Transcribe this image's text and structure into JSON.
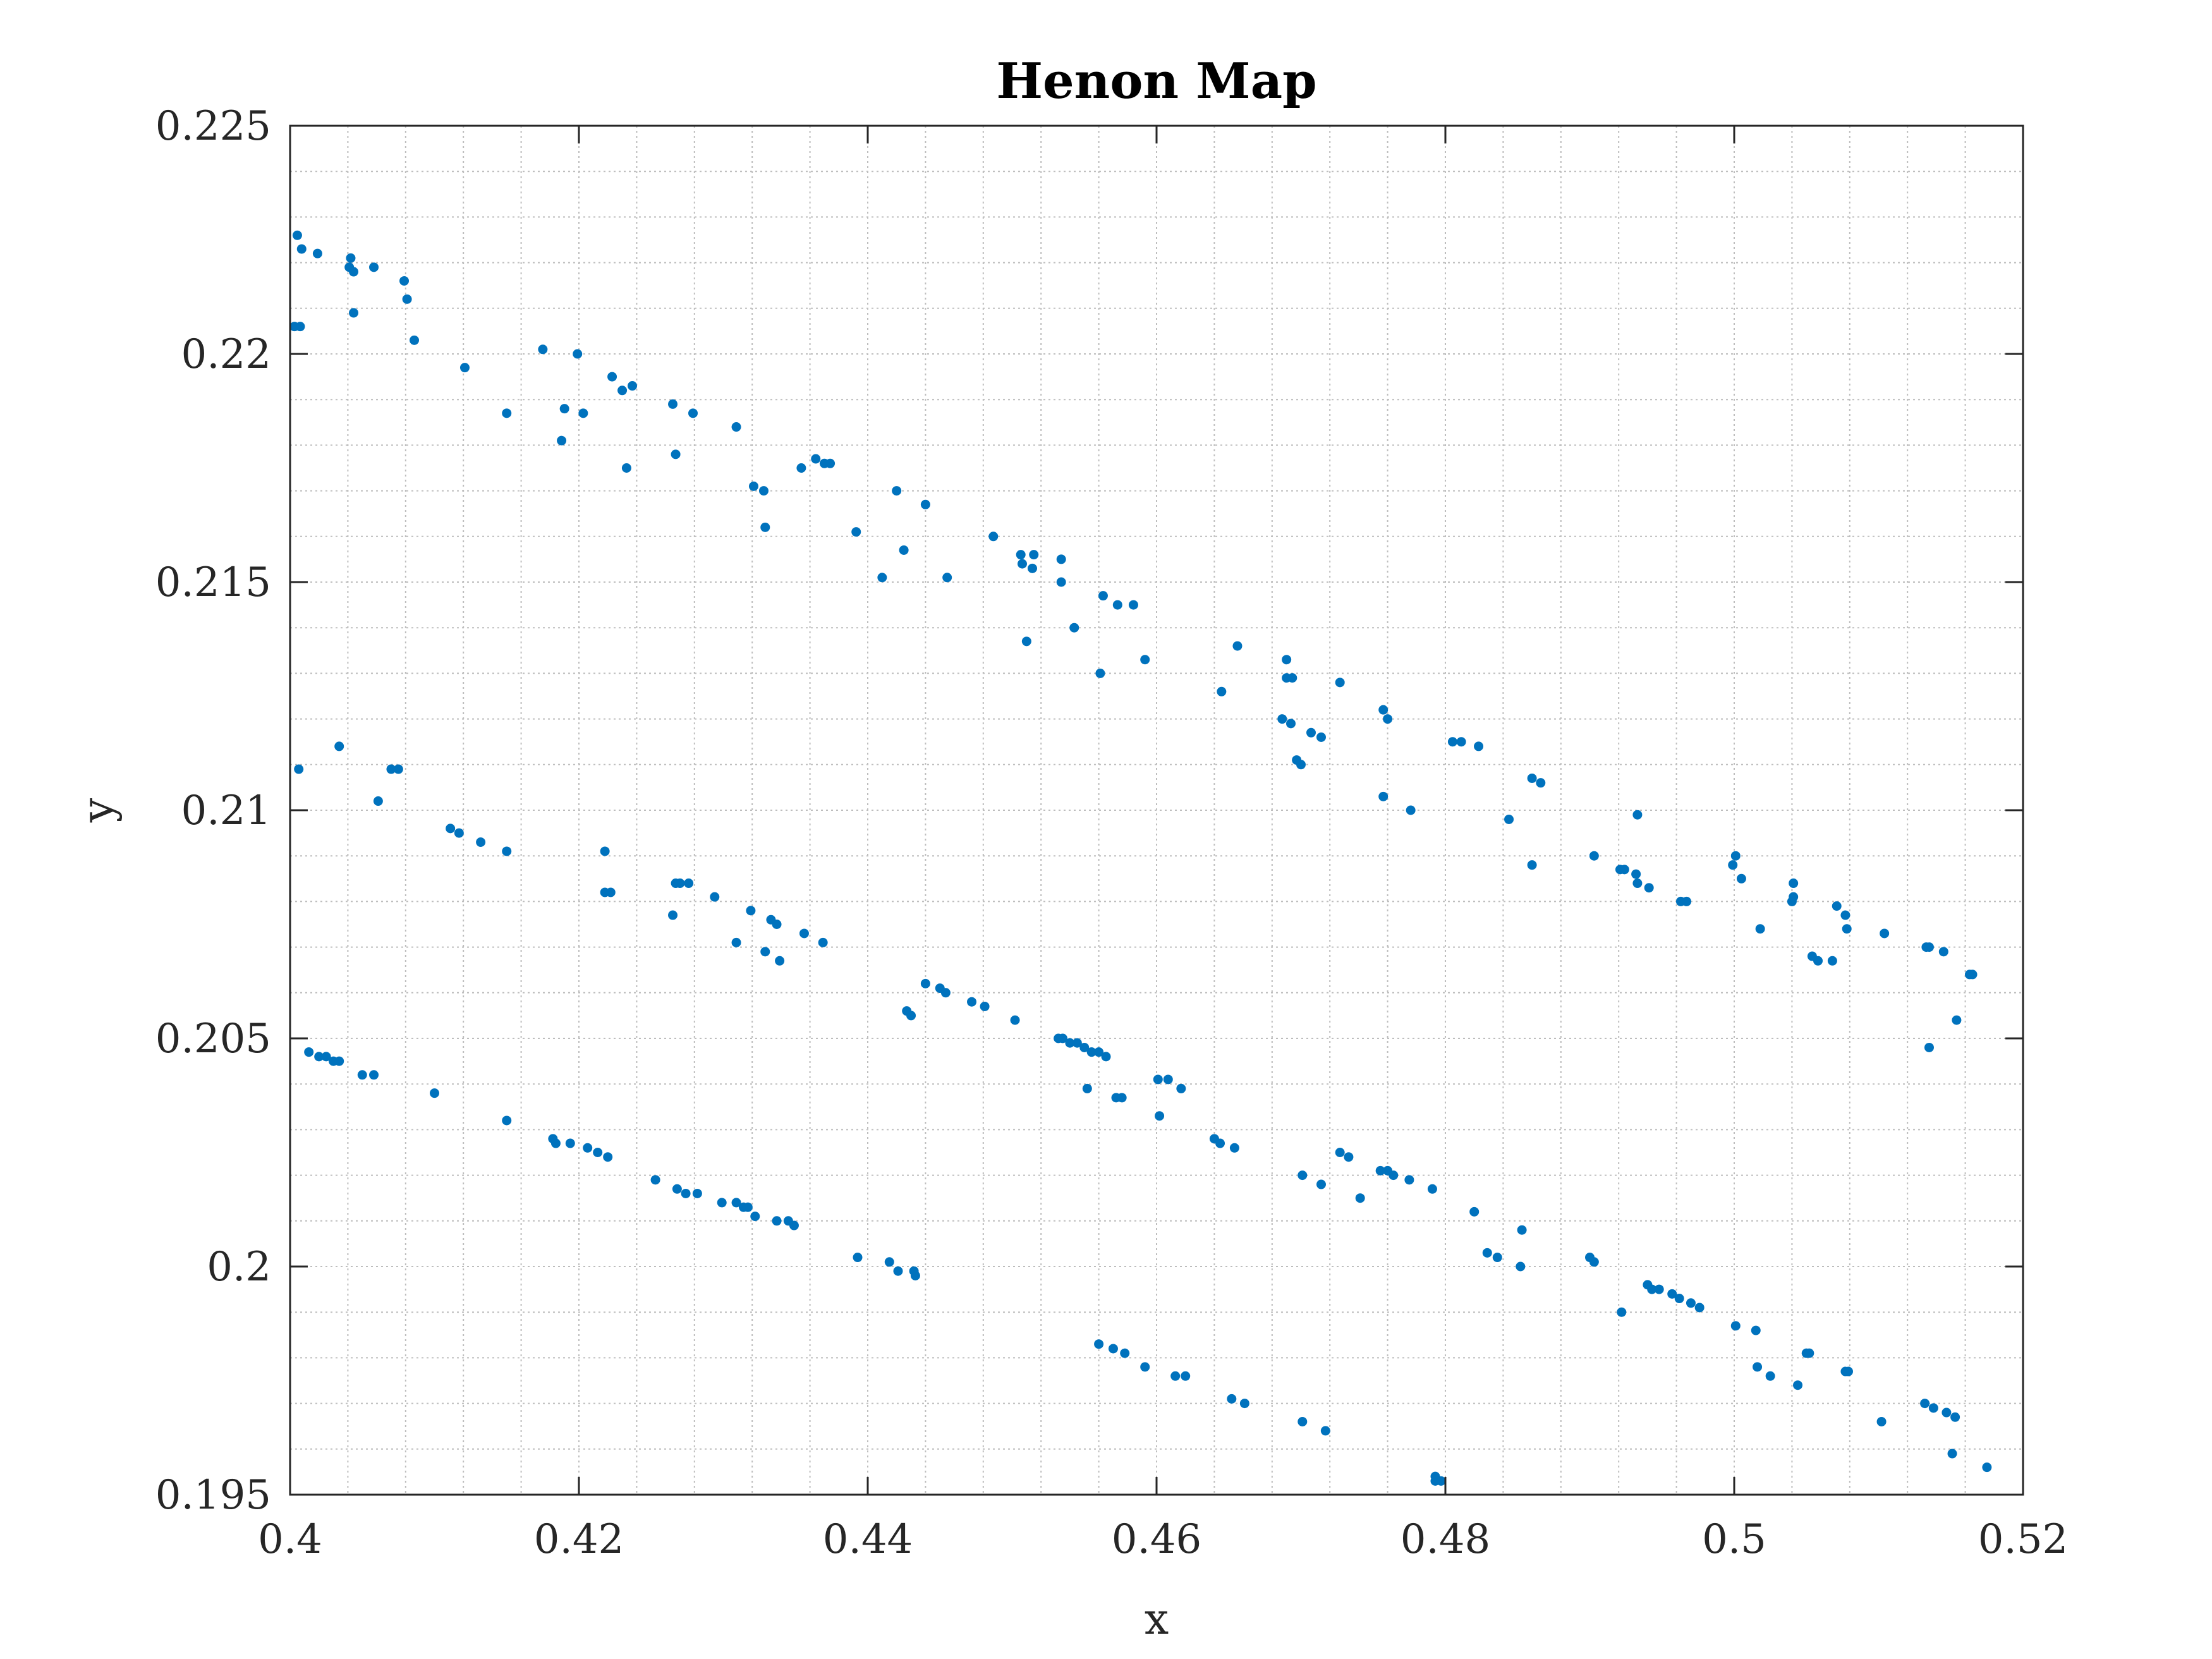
{
  "chart_data": {
    "type": "scatter",
    "title": "Henon Map",
    "xlabel": "x",
    "ylabel": "y",
    "xlim": [
      0.4,
      0.52
    ],
    "ylim": [
      0.195,
      0.225
    ],
    "grid": "on (major and minor)",
    "marker_color": "#0072BD",
    "x_ticks": [
      "0.4",
      "0.42",
      "0.44",
      "0.46",
      "0.48",
      "0.5",
      "0.52"
    ],
    "y_ticks": [
      "0.195",
      "0.2",
      "0.205",
      "0.21",
      "0.215",
      "0.22",
      "0.225"
    ],
    "points": [
      [
        0.4005,
        0.2226
      ],
      [
        0.4008,
        0.2223
      ],
      [
        0.4019,
        0.2222
      ],
      [
        0.4041,
        0.2219
      ],
      [
        0.4042,
        0.2221
      ],
      [
        0.4044,
        0.2218
      ],
      [
        0.4058,
        0.2219
      ],
      [
        0.4079,
        0.2216
      ],
      [
        0.4081,
        0.2212
      ],
      [
        0.4044,
        0.2209
      ],
      [
        0.4003,
        0.2206
      ],
      [
        0.4007,
        0.2206
      ],
      [
        0.4086,
        0.2203
      ],
      [
        0.4175,
        0.2201
      ],
      [
        0.4199,
        0.22
      ],
      [
        0.4121,
        0.2197
      ],
      [
        0.4223,
        0.2195
      ],
      [
        0.423,
        0.2192
      ],
      [
        0.4237,
        0.2193
      ],
      [
        0.4265,
        0.2189
      ],
      [
        0.4279,
        0.2187
      ],
      [
        0.415,
        0.2187
      ],
      [
        0.419,
        0.2188
      ],
      [
        0.4203,
        0.2187
      ],
      [
        0.4309,
        0.2184
      ],
      [
        0.4188,
        0.2181
      ],
      [
        0.4267,
        0.2178
      ],
      [
        0.4233,
        0.2175
      ],
      [
        0.4354,
        0.2175
      ],
      [
        0.4364,
        0.2177
      ],
      [
        0.437,
        0.2176
      ],
      [
        0.4374,
        0.2176
      ],
      [
        0.4321,
        0.2171
      ],
      [
        0.4328,
        0.217
      ],
      [
        0.442,
        0.217
      ],
      [
        0.444,
        0.2167
      ],
      [
        0.4329,
        0.2162
      ],
      [
        0.4392,
        0.2161
      ],
      [
        0.4487,
        0.216
      ],
      [
        0.4425,
        0.2157
      ],
      [
        0.4506,
        0.2156
      ],
      [
        0.4515,
        0.2156
      ],
      [
        0.4534,
        0.2155
      ],
      [
        0.4507,
        0.2154
      ],
      [
        0.4514,
        0.2153
      ],
      [
        0.441,
        0.2151
      ],
      [
        0.4455,
        0.2151
      ],
      [
        0.4534,
        0.215
      ],
      [
        0.4563,
        0.2147
      ],
      [
        0.4573,
        0.2145
      ],
      [
        0.4584,
        0.2145
      ],
      [
        0.4543,
        0.214
      ],
      [
        0.451,
        0.2137
      ],
      [
        0.4656,
        0.2136
      ],
      [
        0.4592,
        0.2133
      ],
      [
        0.469,
        0.2133
      ],
      [
        0.4561,
        0.213
      ],
      [
        0.469,
        0.2129
      ],
      [
        0.4694,
        0.2129
      ],
      [
        0.4727,
        0.2128
      ],
      [
        0.4645,
        0.2126
      ],
      [
        0.4757,
        0.2122
      ],
      [
        0.476,
        0.212
      ],
      [
        0.4687,
        0.212
      ],
      [
        0.4693,
        0.2119
      ],
      [
        0.4707,
        0.2117
      ],
      [
        0.4714,
        0.2116
      ],
      [
        0.4805,
        0.2115
      ],
      [
        0.4811,
        0.2115
      ],
      [
        0.4823,
        0.2114
      ],
      [
        0.4697,
        0.2111
      ],
      [
        0.47,
        0.211
      ],
      [
        0.486,
        0.2107
      ],
      [
        0.4866,
        0.2106
      ],
      [
        0.4757,
        0.2103
      ],
      [
        0.4776,
        0.21
      ],
      [
        0.4844,
        0.2098
      ],
      [
        0.4933,
        0.2099
      ],
      [
        0.4903,
        0.209
      ],
      [
        0.5001,
        0.209
      ],
      [
        0.4999,
        0.2088
      ],
      [
        0.4921,
        0.2087
      ],
      [
        0.4924,
        0.2087
      ],
      [
        0.486,
        0.2088
      ],
      [
        0.4932,
        0.2086
      ],
      [
        0.4933,
        0.2084
      ],
      [
        0.4941,
        0.2083
      ],
      [
        0.5005,
        0.2085
      ],
      [
        0.5041,
        0.2084
      ],
      [
        0.5041,
        0.2081
      ],
      [
        0.504,
        0.208
      ],
      [
        0.4967,
        0.208
      ],
      [
        0.4963,
        0.208
      ],
      [
        0.5071,
        0.2079
      ],
      [
        0.5077,
        0.2077
      ],
      [
        0.5018,
        0.2074
      ],
      [
        0.5078,
        0.2074
      ],
      [
        0.5104,
        0.2073
      ],
      [
        0.5133,
        0.207
      ],
      [
        0.5135,
        0.207
      ],
      [
        0.5145,
        0.2069
      ],
      [
        0.5054,
        0.2068
      ],
      [
        0.5058,
        0.2067
      ],
      [
        0.5068,
        0.2067
      ],
      [
        0.5163,
        0.2064
      ],
      [
        0.5165,
        0.2064
      ],
      [
        0.5154,
        0.2054
      ],
      [
        0.5135,
        0.2048
      ],
      [
        0.4006,
        0.2109
      ],
      [
        0.4034,
        0.2114
      ],
      [
        0.407,
        0.2109
      ],
      [
        0.4075,
        0.2109
      ],
      [
        0.4061,
        0.2102
      ],
      [
        0.4111,
        0.2096
      ],
      [
        0.4117,
        0.2095
      ],
      [
        0.4132,
        0.2093
      ],
      [
        0.415,
        0.2091
      ],
      [
        0.4218,
        0.2091
      ],
      [
        0.4218,
        0.2082
      ],
      [
        0.4222,
        0.2082
      ],
      [
        0.4267,
        0.2084
      ],
      [
        0.427,
        0.2084
      ],
      [
        0.4276,
        0.2084
      ],
      [
        0.4294,
        0.2081
      ],
      [
        0.4319,
        0.2078
      ],
      [
        0.4333,
        0.2076
      ],
      [
        0.4337,
        0.2075
      ],
      [
        0.4265,
        0.2077
      ],
      [
        0.4309,
        0.2071
      ],
      [
        0.4356,
        0.2073
      ],
      [
        0.4369,
        0.2071
      ],
      [
        0.4329,
        0.2069
      ],
      [
        0.4339,
        0.2067
      ],
      [
        0.444,
        0.2062
      ],
      [
        0.445,
        0.2061
      ],
      [
        0.4454,
        0.206
      ],
      [
        0.4427,
        0.2056
      ],
      [
        0.443,
        0.2055
      ],
      [
        0.4472,
        0.2058
      ],
      [
        0.4481,
        0.2057
      ],
      [
        0.4502,
        0.2054
      ],
      [
        0.4532,
        0.205
      ],
      [
        0.4535,
        0.205
      ],
      [
        0.454,
        0.2049
      ],
      [
        0.4545,
        0.2049
      ],
      [
        0.455,
        0.2048
      ],
      [
        0.4555,
        0.2047
      ],
      [
        0.456,
        0.2047
      ],
      [
        0.4565,
        0.2046
      ],
      [
        0.4601,
        0.2041
      ],
      [
        0.4608,
        0.2041
      ],
      [
        0.4617,
        0.2039
      ],
      [
        0.4552,
        0.2039
      ],
      [
        0.4572,
        0.2037
      ],
      [
        0.4576,
        0.2037
      ],
      [
        0.4602,
        0.2033
      ],
      [
        0.464,
        0.2028
      ],
      [
        0.4644,
        0.2027
      ],
      [
        0.4654,
        0.2026
      ],
      [
        0.4727,
        0.2025
      ],
      [
        0.4733,
        0.2024
      ],
      [
        0.4755,
        0.2021
      ],
      [
        0.476,
        0.2021
      ],
      [
        0.4764,
        0.202
      ],
      [
        0.4701,
        0.202
      ],
      [
        0.4775,
        0.2019
      ],
      [
        0.4714,
        0.2018
      ],
      [
        0.4791,
        0.2017
      ],
      [
        0.4741,
        0.2015
      ],
      [
        0.482,
        0.2012
      ],
      [
        0.4853,
        0.2008
      ],
      [
        0.4829,
        0.2003
      ],
      [
        0.4836,
        0.2002
      ],
      [
        0.4852,
        0.2
      ],
      [
        0.49,
        0.2002
      ],
      [
        0.4903,
        0.2001
      ],
      [
        0.494,
        0.1996
      ],
      [
        0.4943,
        0.1995
      ],
      [
        0.4948,
        0.1995
      ],
      [
        0.4957,
        0.1994
      ],
      [
        0.4962,
        0.1993
      ],
      [
        0.497,
        0.1992
      ],
      [
        0.4976,
        0.1991
      ],
      [
        0.4922,
        0.199
      ],
      [
        0.5001,
        0.1987
      ],
      [
        0.5015,
        0.1986
      ],
      [
        0.505,
        0.1981
      ],
      [
        0.5052,
        0.1981
      ],
      [
        0.5016,
        0.1978
      ],
      [
        0.5025,
        0.1976
      ],
      [
        0.5044,
        0.1974
      ],
      [
        0.5077,
        0.1977
      ],
      [
        0.5079,
        0.1977
      ],
      [
        0.5132,
        0.197
      ],
      [
        0.5138,
        0.1969
      ],
      [
        0.5147,
        0.1968
      ],
      [
        0.5153,
        0.1967
      ],
      [
        0.5102,
        0.1966
      ],
      [
        0.5151,
        0.1959
      ],
      [
        0.5175,
        0.1956
      ],
      [
        0.4013,
        0.2047
      ],
      [
        0.402,
        0.2046
      ],
      [
        0.4025,
        0.2046
      ],
      [
        0.403,
        0.2045
      ],
      [
        0.4034,
        0.2045
      ],
      [
        0.405,
        0.2042
      ],
      [
        0.4058,
        0.2042
      ],
      [
        0.41,
        0.2038
      ],
      [
        0.415,
        0.2032
      ],
      [
        0.4182,
        0.2028
      ],
      [
        0.4184,
        0.2027
      ],
      [
        0.4194,
        0.2027
      ],
      [
        0.4206,
        0.2026
      ],
      [
        0.4213,
        0.2025
      ],
      [
        0.422,
        0.2024
      ],
      [
        0.4253,
        0.2019
      ],
      [
        0.4268,
        0.2017
      ],
      [
        0.4274,
        0.2016
      ],
      [
        0.4282,
        0.2016
      ],
      [
        0.4299,
        0.2014
      ],
      [
        0.4309,
        0.2014
      ],
      [
        0.4314,
        0.2013
      ],
      [
        0.4317,
        0.2013
      ],
      [
        0.4322,
        0.2011
      ],
      [
        0.4337,
        0.201
      ],
      [
        0.4345,
        0.201
      ],
      [
        0.4349,
        0.2009
      ],
      [
        0.4393,
        0.2002
      ],
      [
        0.4415,
        0.2001
      ],
      [
        0.4421,
        0.1999
      ],
      [
        0.4432,
        0.1999
      ],
      [
        0.4433,
        0.1998
      ],
      [
        0.456,
        0.1983
      ],
      [
        0.457,
        0.1982
      ],
      [
        0.4578,
        0.1981
      ],
      [
        0.4592,
        0.1978
      ],
      [
        0.4613,
        0.1976
      ],
      [
        0.462,
        0.1976
      ],
      [
        0.4652,
        0.1971
      ],
      [
        0.4661,
        0.197
      ],
      [
        0.4701,
        0.1966
      ],
      [
        0.4717,
        0.1964
      ],
      [
        0.4793,
        0.1954
      ],
      [
        0.4793,
        0.1953
      ],
      [
        0.4797,
        0.1953
      ]
    ]
  }
}
